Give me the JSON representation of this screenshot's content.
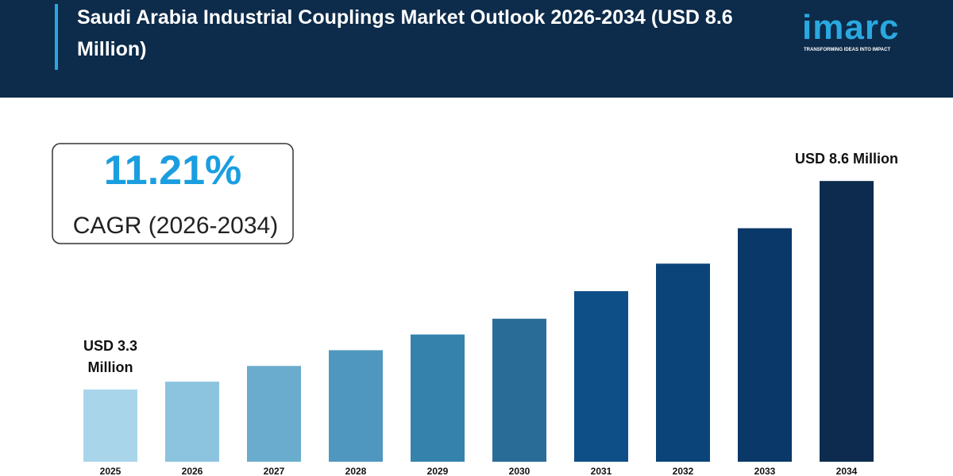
{
  "header": {
    "title": "Saudi Arabia Industrial Couplings Market Outlook 2026-2034 (USD 8.6 Million)",
    "logo": {
      "name": "imarc",
      "tagline": "TRANSFORMING IDEAS INTO IMPACT"
    }
  },
  "highlight": {
    "value": "11.21%",
    "label": "CAGR (2026-2034)"
  },
  "chart_data": {
    "type": "bar",
    "categories": [
      "2025",
      "2026",
      "2027",
      "2028",
      "2029",
      "2030",
      "2031",
      "2032",
      "2033",
      "2034"
    ],
    "values": [
      3.3,
      3.5,
      3.9,
      4.3,
      4.7,
      5.1,
      5.8,
      6.5,
      7.4,
      8.6
    ],
    "value_labels": [
      "USD 3.3 Million",
      null,
      null,
      null,
      null,
      null,
      null,
      null,
      null,
      "USD 8.6 Million"
    ],
    "colors": [
      "#a8d5ea",
      "#8cc4df",
      "#6aaccd",
      "#4f97bf",
      "#3583ad",
      "#2a6c98",
      "#0e4f88",
      "#0b4479",
      "#0a3868",
      "#0c2b4e"
    ]
  }
}
